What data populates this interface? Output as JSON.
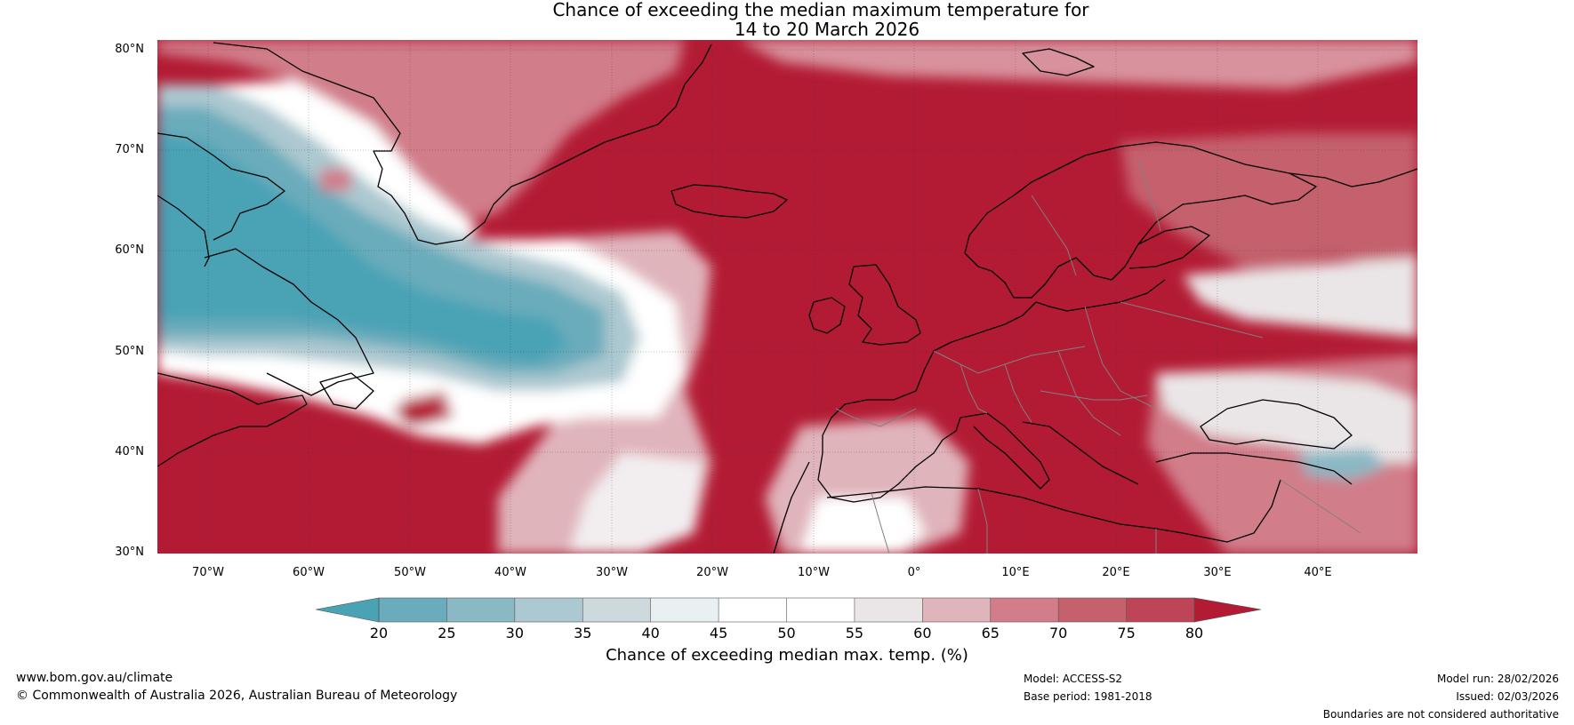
{
  "title": {
    "line1": "Chance of exceeding the median maximum temperature for",
    "line2": "14 to 20 March 2026"
  },
  "map": {
    "lat_labels": [
      "80°N",
      "70°N",
      "60°N",
      "50°N",
      "40°N",
      "30°N"
    ],
    "lon_labels": [
      "70°W",
      "60°W",
      "50°W",
      "40°W",
      "30°W",
      "20°W",
      "10°W",
      "0°",
      "10°E",
      "20°E",
      "30°E",
      "40°E"
    ],
    "lat_values": [
      80,
      70,
      60,
      50,
      40,
      30
    ],
    "lon_values": [
      -70,
      -60,
      -50,
      -40,
      -30,
      -20,
      -10,
      0,
      10,
      20,
      30,
      40
    ],
    "extent": {
      "lon_min": -75,
      "lon_max": 50,
      "lat_min": 30,
      "lat_max": 81
    },
    "background_color": "#b31b34",
    "coast_color": "#000000",
    "border_color": "#808080"
  },
  "colorbar": {
    "ticks": [
      "20",
      "25",
      "30",
      "35",
      "40",
      "45",
      "50",
      "55",
      "60",
      "65",
      "70",
      "75",
      "80"
    ],
    "colors": [
      "#4aa3b5",
      "#6aacbb",
      "#8ab8c4",
      "#acc8d0",
      "#cdd9dc",
      "#e8f0f1",
      "#ffffff",
      "#ffffff",
      "#eae6e7",
      "#e0b4bb",
      "#d17d8a",
      "#c5606d",
      "#be4557",
      "#b31b34"
    ],
    "label": "Chance of exceeding median max. temp. (%)"
  },
  "footer": {
    "url": "www.bom.gov.au/climate",
    "copyright": "© Commonwealth of Australia 2026, Australian Bureau of Meteorology",
    "model": "Model: ACCESS-S2",
    "base_period": "Base period: 1981-2018",
    "model_run": "Model run: 28/02/2026",
    "issued": "Issued: 02/03/2026",
    "disclaimer": "Boundaries are not considered authoritative"
  }
}
